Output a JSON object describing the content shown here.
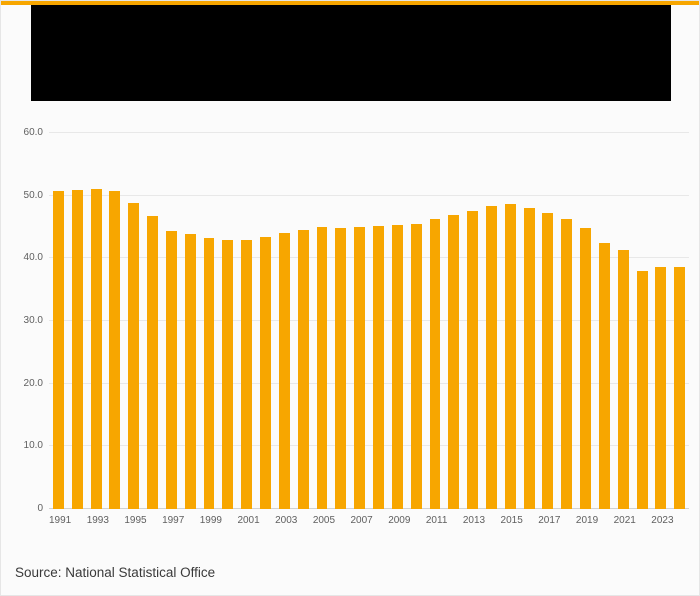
{
  "page": {
    "accent_color": "#f7a600",
    "header_bg": "#000000",
    "background": "#fbfbfb",
    "source_label": "Source: National Statistical Office"
  },
  "chart_data": {
    "type": "bar",
    "title": "",
    "bar_color": "#f7a600",
    "grid": true,
    "legend_position": "none",
    "ylim": [
      0,
      60
    ],
    "y_ticks": [
      0,
      10,
      20,
      30,
      40,
      50,
      60
    ],
    "y_tick_labels": [
      "0",
      "10.0",
      "20.0",
      "30.0",
      "40.0",
      "50.0",
      "60.0"
    ],
    "x_tick_labels": [
      "1991",
      "1993",
      "1995",
      "1997",
      "1999",
      "2001",
      "2003",
      "2005",
      "2007",
      "2009",
      "2011",
      "2013",
      "2015",
      "2017",
      "2019",
      "2021",
      "2023"
    ],
    "categories": [
      1991,
      1992,
      1993,
      1994,
      1995,
      1996,
      1997,
      1998,
      1999,
      2000,
      2001,
      2002,
      2003,
      2004,
      2005,
      2006,
      2007,
      2008,
      2009,
      2010,
      2011,
      2012,
      2013,
      2014,
      2015,
      2016,
      2017,
      2018,
      2019,
      2020,
      2021,
      2022,
      2023,
      2024
    ],
    "values": [
      50.7,
      50.9,
      51.1,
      50.7,
      48.8,
      46.7,
      44.4,
      43.9,
      43.3,
      43.0,
      43.0,
      43.4,
      44.0,
      44.6,
      45.0,
      44.9,
      45.0,
      45.2,
      45.3,
      45.5,
      46.2,
      46.9,
      47.6,
      48.3,
      48.6,
      48.0,
      47.2,
      46.2,
      44.9,
      42.4,
      41.3,
      38.0,
      38.6,
      38.6
    ],
    "xlabel": "",
    "ylabel": ""
  }
}
